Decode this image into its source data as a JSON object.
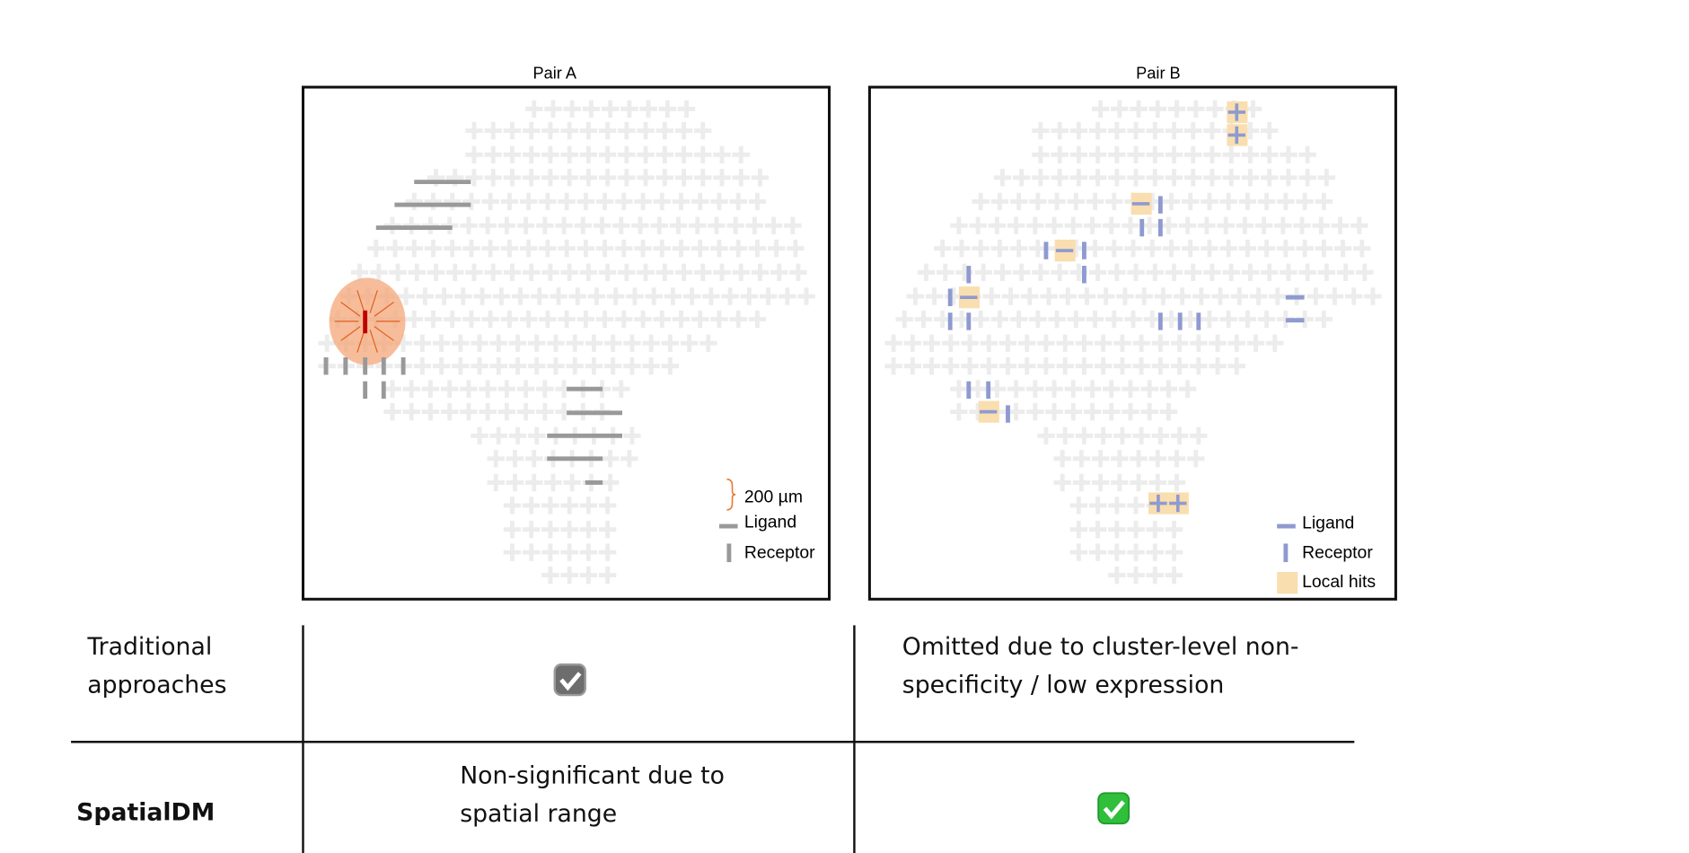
{
  "panels": [
    {
      "title": "Pair A",
      "legend": {
        "scale": "200 µm",
        "ligand": "Ligand",
        "receptor": "Receptor"
      }
    },
    {
      "title": "Pair B",
      "legend": {
        "ligand": "Ligand",
        "receptor": "Receptor",
        "local_hits": "Local hits"
      }
    }
  ],
  "table": {
    "rows": [
      {
        "method": "Traditional approaches",
        "pair_b": "Omitted due to cluster-level non-specificity / low expression"
      },
      {
        "method": "SpatialDM",
        "pair_a": "Non-significant due to spatial range"
      }
    ]
  }
}
